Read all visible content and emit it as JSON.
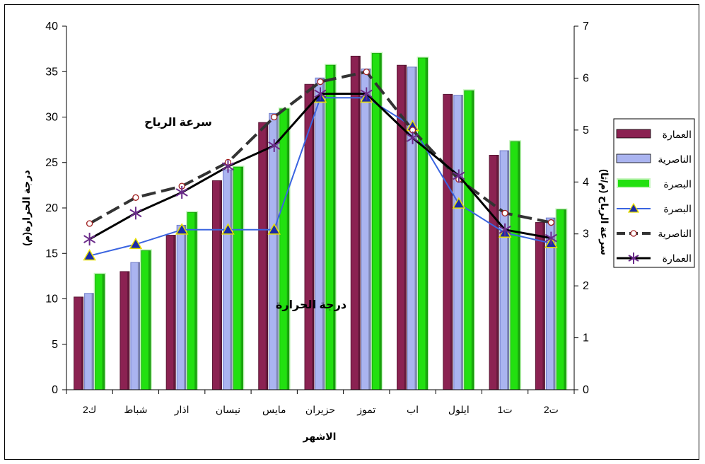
{
  "chart_data": {
    "type": "bar+line",
    "categories": [
      "ك2",
      "شباط",
      "اذار",
      "نيسان",
      "مايس",
      "حزيران",
      "تموز",
      "اب",
      "ايلول",
      "ت1",
      "ت2"
    ],
    "xlabel": "الاشهر",
    "ylabel_left": "درجة الحرارة(م)",
    "ylabel_right": "سرعة الرياح (م/ثا)",
    "ylim_left": [
      0,
      40
    ],
    "ylim_right": [
      0,
      7
    ],
    "yticks_left": [
      0,
      5,
      10,
      15,
      20,
      25,
      30,
      35,
      40
    ],
    "yticks_right": [
      0,
      1,
      2,
      3,
      4,
      5,
      6,
      7
    ],
    "annotations": {
      "wind": "سرعة الرياح",
      "temp": "درجة الحرارة"
    },
    "bar_series": [
      {
        "name": "العمارة",
        "color": "#8B2252",
        "values": [
          10.2,
          13.0,
          17.0,
          23.0,
          29.4,
          33.6,
          36.7,
          35.7,
          32.5,
          25.8,
          18.4
        ]
      },
      {
        "name": "الناصرية",
        "color": "#AAB4F0",
        "values": [
          10.6,
          14.0,
          18.1,
          24.2,
          30.4,
          34.3,
          35.3,
          35.5,
          32.4,
          26.3,
          18.9
        ]
      },
      {
        "name": "البصرة",
        "color": "#22E010",
        "values": [
          12.7,
          15.3,
          19.5,
          24.5,
          30.9,
          35.7,
          37.0,
          36.5,
          32.9,
          27.3,
          19.8
        ]
      }
    ],
    "line_series": [
      {
        "name": "البصرة",
        "color": "#3A64E0",
        "marker": "triangle",
        "values": [
          2.58,
          2.8,
          3.08,
          3.08,
          3.08,
          5.62,
          5.62,
          5.07,
          3.58,
          3.02,
          2.82
        ]
      },
      {
        "name": "الناصرية",
        "color": "#333333",
        "marker": "circle",
        "values": [
          3.2,
          3.7,
          3.92,
          4.38,
          5.25,
          5.93,
          6.12,
          5.0,
          4.05,
          3.4,
          3.22
        ]
      },
      {
        "name": "العمارة",
        "color": "#000000",
        "marker": "star",
        "values": [
          2.9,
          3.4,
          3.8,
          4.3,
          4.7,
          5.7,
          5.7,
          4.85,
          4.12,
          3.08,
          2.92
        ]
      }
    ],
    "legend_position": "right"
  }
}
